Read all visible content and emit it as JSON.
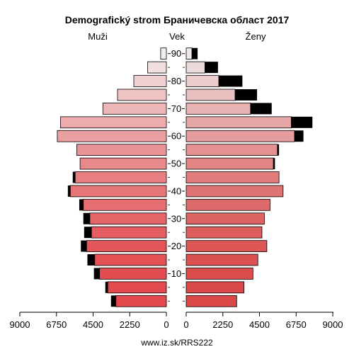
{
  "chart_data": {
    "type": "bar",
    "title": "Demografický strom Браничевска област 2017",
    "label_left": "Muži",
    "label_center": "Vek",
    "label_right": "Ženy",
    "source": "www.iz.sk/RRS222",
    "age_groups": [
      "0-4",
      "5-9",
      "10-14",
      "15-19",
      "20-24",
      "25-29",
      "30-34",
      "35-39",
      "40-44",
      "45-49",
      "50-54",
      "55-59",
      "60-64",
      "65-69",
      "70-74",
      "75-79",
      "80-84",
      "85-89",
      "90+"
    ],
    "age_tick_labels": [
      "10",
      "20",
      "30",
      "40",
      "50",
      "60",
      "70",
      "80",
      "90"
    ],
    "age_tick_groups": [
      2,
      4,
      6,
      8,
      10,
      12,
      14,
      16,
      18
    ],
    "x_ticks_left": [
      "9000",
      "6750",
      "4500",
      "2250",
      "0"
    ],
    "x_ticks_right": [
      "0",
      "2250",
      "4500",
      "6750",
      "9000"
    ],
    "x_max": 9000,
    "series": [
      {
        "name": "Muži",
        "values": [
          3100,
          3600,
          4100,
          4400,
          4900,
          4600,
          4700,
          5100,
          5900,
          5600,
          5300,
          5500,
          6700,
          6500,
          3900,
          3000,
          2000,
          1150,
          350
        ]
      },
      {
        "name": "Muži nadbytok",
        "values": [
          300,
          150,
          350,
          450,
          350,
          450,
          400,
          250,
          150,
          150,
          0,
          0,
          0,
          0,
          0,
          0,
          0,
          0,
          0
        ]
      },
      {
        "name": "Ženy",
        "values": [
          3100,
          3550,
          4100,
          4400,
          4950,
          4650,
          4800,
          5150,
          5950,
          5700,
          5350,
          5600,
          6650,
          6450,
          3950,
          3000,
          2000,
          1150,
          350
        ]
      },
      {
        "name": "Ženy nadbytok",
        "values": [
          0,
          0,
          0,
          0,
          0,
          0,
          0,
          0,
          0,
          0,
          100,
          100,
          550,
          1300,
          1300,
          1350,
          1450,
          800,
          350
        ]
      }
    ]
  }
}
